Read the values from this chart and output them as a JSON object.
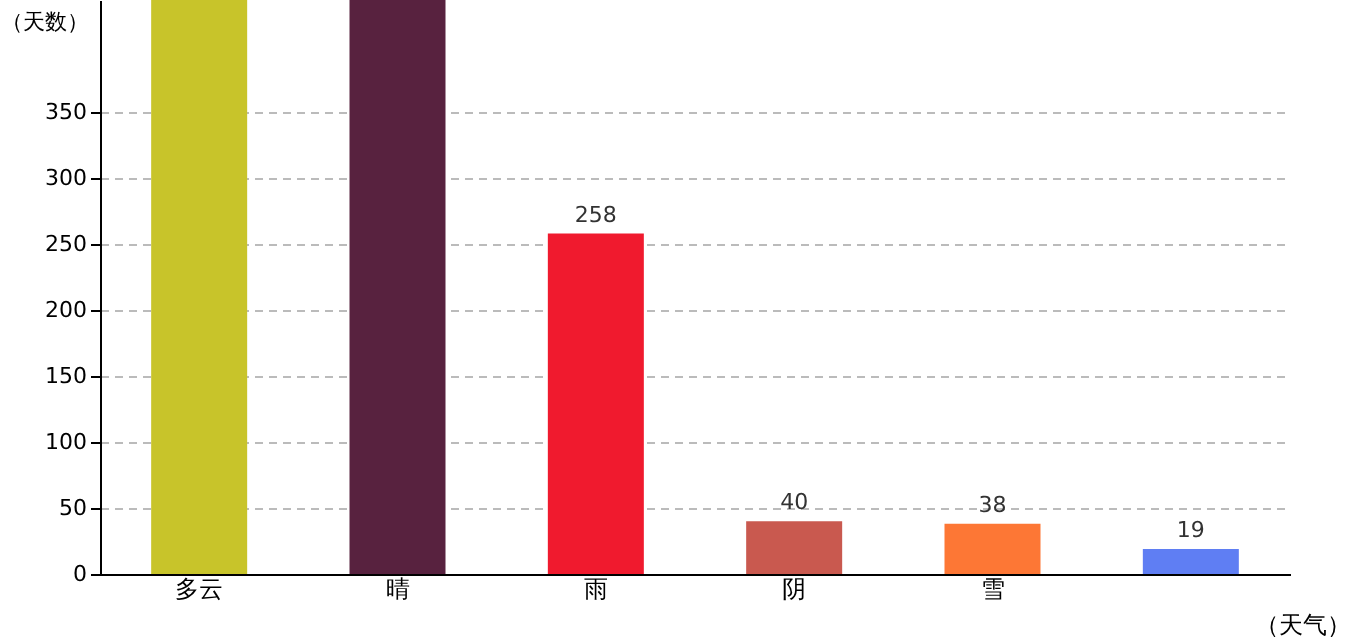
{
  "chart_data": {
    "type": "bar",
    "xlabel": "（天气）",
    "ylabel": "（天数）",
    "categories": [
      "多云",
      "晴",
      "雨",
      "阴",
      "雪",
      null
    ],
    "values": [
      435,
      435,
      258,
      40,
      38,
      19
    ],
    "colors": [
      "#c8c42a",
      "#58223f",
      "#f01a2e",
      "#c9594f",
      "#fd7735",
      "#5f7ef3"
    ],
    "value_labels": [
      null,
      null,
      "258",
      "40",
      "38",
      "19"
    ],
    "ylim": [
      0,
      435
    ],
    "yticks": [
      0,
      50,
      100,
      150,
      200,
      250,
      300,
      350
    ],
    "grid": "y"
  }
}
